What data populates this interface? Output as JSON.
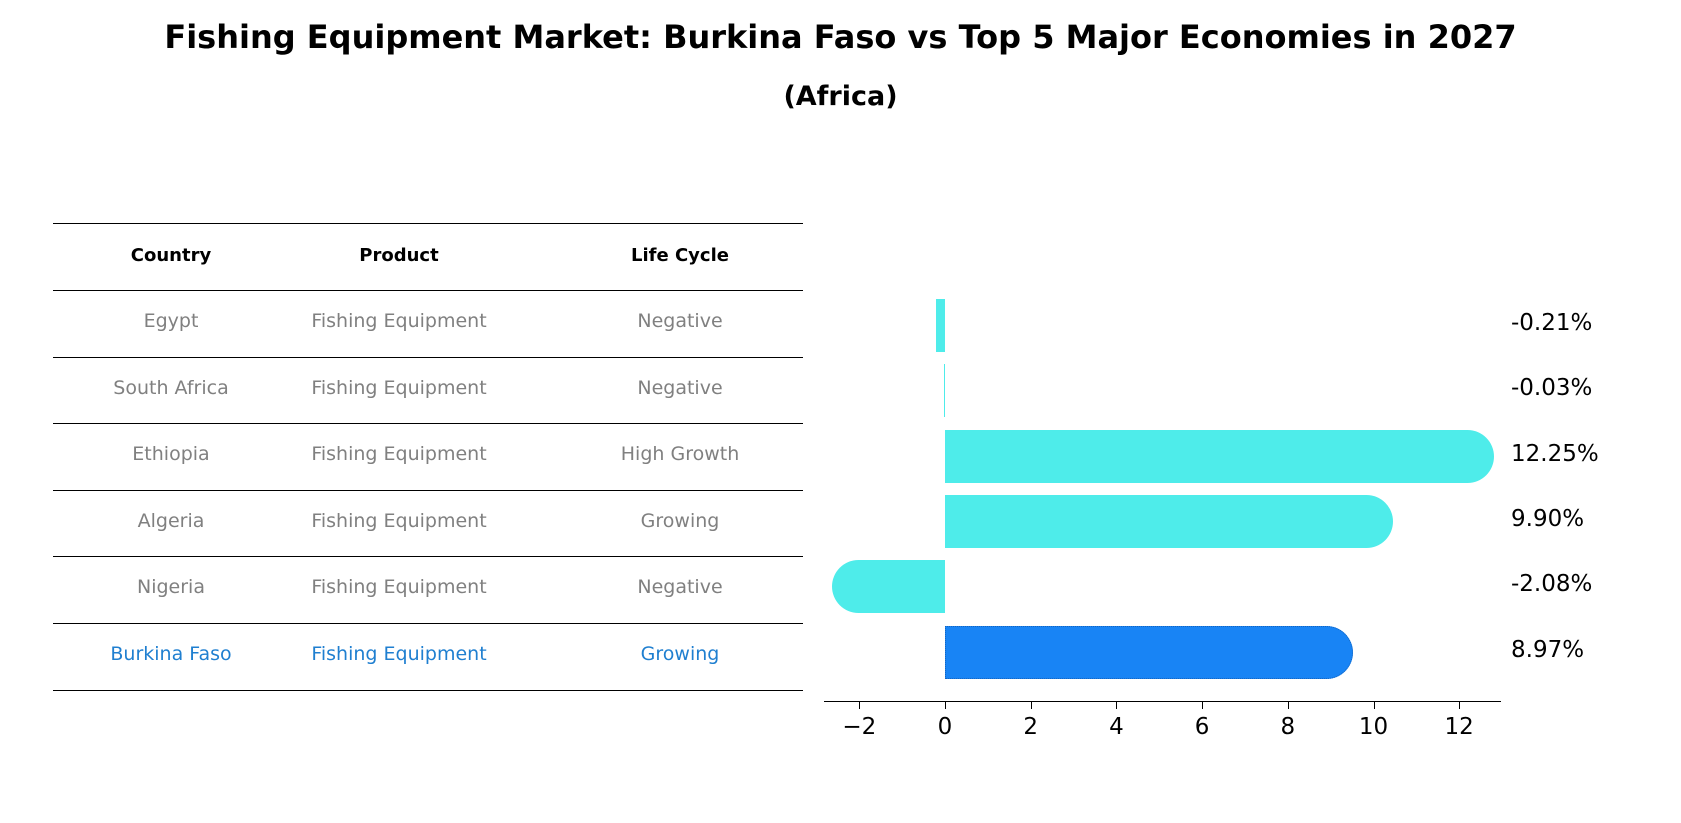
{
  "title": "Fishing Equipment Market: Burkina Faso vs Top 5 Major Economies in 2027",
  "subtitle": "(Africa)",
  "table": {
    "headers": [
      "Country",
      "Product",
      "Life Cycle"
    ],
    "rows": [
      {
        "country": "Egypt",
        "product": "Fishing Equipment",
        "life_cycle": "Negative",
        "highlight": false
      },
      {
        "country": "South Africa",
        "product": "Fishing Equipment",
        "life_cycle": "Negative",
        "highlight": false
      },
      {
        "country": "Ethiopia",
        "product": "Fishing Equipment",
        "life_cycle": "High Growth",
        "highlight": false
      },
      {
        "country": "Algeria",
        "product": "Fishing Equipment",
        "life_cycle": "Growing",
        "highlight": false
      },
      {
        "country": "Nigeria",
        "product": "Fishing Equipment",
        "life_cycle": "Negative",
        "highlight": false
      },
      {
        "country": "Burkina Faso",
        "product": "Fishing Equipment",
        "life_cycle": "Growing",
        "highlight": true
      }
    ]
  },
  "colors": {
    "bar": "#4eecea",
    "highlight_bar": "#1884f5",
    "highlight_text": "#1f7fd0",
    "muted_text": "#808080"
  },
  "chart_data": {
    "type": "bar",
    "orientation": "horizontal",
    "title": "Fishing Equipment Market: Burkina Faso vs Top 5 Major Economies in 2027",
    "subtitle": "(Africa)",
    "categories": [
      "Egypt",
      "South Africa",
      "Ethiopia",
      "Algeria",
      "Nigeria",
      "Burkina Faso"
    ],
    "values": [
      -0.21,
      -0.03,
      12.25,
      9.9,
      -2.08,
      8.97
    ],
    "value_labels": [
      "-0.21%",
      "-0.03%",
      "12.25%",
      "9.90%",
      "-2.08%",
      "8.97%"
    ],
    "highlight": "Burkina Faso",
    "xlabel": "",
    "ylabel": "",
    "xticks": [
      -2,
      0,
      2,
      4,
      6,
      8,
      10,
      12
    ],
    "xtick_labels": [
      "−2",
      "0",
      "2",
      "4",
      "6",
      "8",
      "10",
      "12"
    ],
    "xlim": [
      -2.8,
      13
    ],
    "grid": false,
    "legend": "none"
  }
}
